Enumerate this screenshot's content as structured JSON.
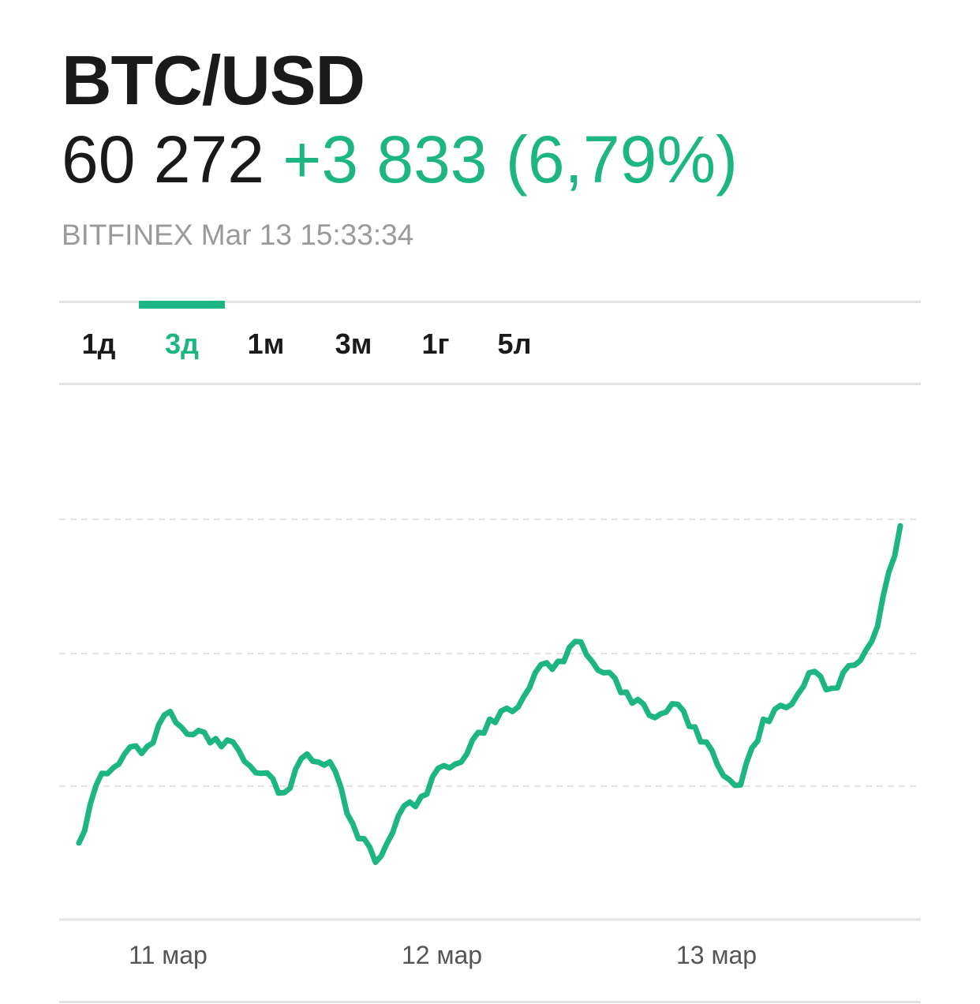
{
  "header": {
    "ticker": "BTC/USD",
    "price": "60 272",
    "change": "+3 833 (6,79%)",
    "source": "BITFINEX Mar 13 15:33:34"
  },
  "tabs": [
    {
      "label": "1д",
      "active": false
    },
    {
      "label": "3д",
      "active": true
    },
    {
      "label": "1м",
      "active": false
    },
    {
      "label": "3м",
      "active": false
    },
    {
      "label": "1г",
      "active": false
    },
    {
      "label": "5л",
      "active": false
    }
  ],
  "colors": {
    "accent": "#1db584",
    "text": "#1a1a1a",
    "muted": "#9a9a9a",
    "grid": "#e3e3e3"
  },
  "chart_data": {
    "type": "line",
    "series_color": "#1db584",
    "x_ticks": [
      "11 мар",
      "12 мар",
      "13 мар"
    ],
    "grid": "dashed horizontal, unlabeled",
    "x": [
      0,
      2,
      4,
      6,
      8,
      10,
      12,
      14,
      16,
      18,
      20,
      22,
      24,
      26,
      28,
      30,
      32,
      34,
      36,
      38,
      40,
      42,
      44,
      46,
      48,
      50,
      52,
      54,
      56,
      58,
      60,
      62,
      64,
      66,
      68,
      70,
      72
    ],
    "values": [
      0.1,
      0.28,
      0.33,
      0.35,
      0.44,
      0.38,
      0.37,
      0.34,
      0.28,
      0.23,
      0.33,
      0.31,
      0.15,
      0.05,
      0.17,
      0.22,
      0.3,
      0.33,
      0.42,
      0.44,
      0.54,
      0.57,
      0.62,
      0.54,
      0.49,
      0.43,
      0.46,
      0.4,
      0.3,
      0.25,
      0.42,
      0.45,
      0.54,
      0.5,
      0.56,
      0.66,
      0.92
    ]
  }
}
